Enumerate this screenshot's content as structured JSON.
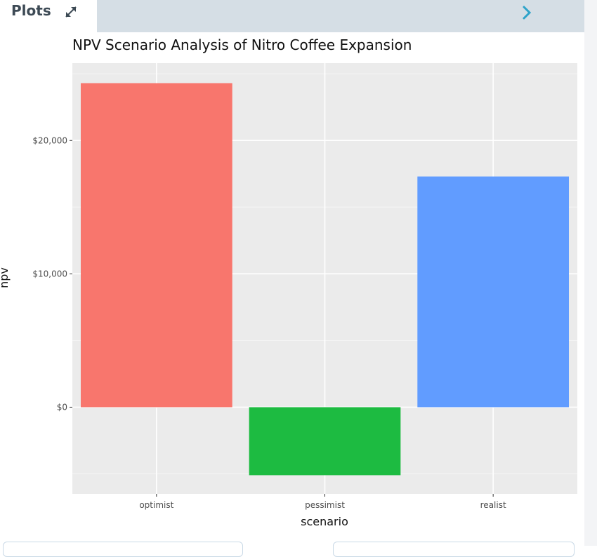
{
  "header": {
    "title": "Plots"
  },
  "icons": {
    "expand": "expand-arrows-icon",
    "next": "chevron-right-icon"
  },
  "colors": {
    "header_bar": "#d5dee5",
    "chevron": "#2ea3c9"
  },
  "chart_data": {
    "type": "bar",
    "title": "NPV Scenario Analysis of Nitro Coffee Expansion",
    "xlabel": "scenario",
    "ylabel": "npv",
    "categories": [
      "optimist",
      "pessimist",
      "realist"
    ],
    "values": [
      24300,
      -5100,
      17300
    ],
    "colors": [
      "#f8766d",
      "#1dbb41",
      "#619cff"
    ],
    "ylim": [
      -6500,
      25800
    ],
    "yticks": [
      0,
      10000,
      20000
    ],
    "ytick_labels": [
      "$0",
      "$10,000",
      "$20,000"
    ],
    "grid": true,
    "legend": "none"
  }
}
